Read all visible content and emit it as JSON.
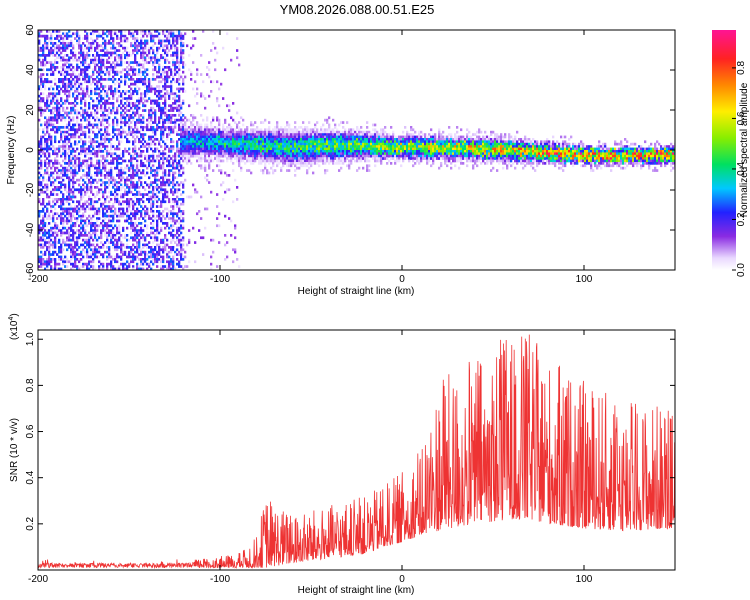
{
  "title": "YM08.2026.088.00.51.E25",
  "chart_data": [
    {
      "type": "heatmap",
      "xlabel": "Height of straight line (km)",
      "ylabel": "Frequency (Hz)",
      "xlim": [
        -200,
        150
      ],
      "ylim": [
        -60,
        60
      ],
      "xticks": [
        -200,
        -100,
        0,
        100
      ],
      "xtick_labels": [
        "-200",
        "-100",
        "0",
        "100"
      ],
      "yticks": [
        -60,
        -40,
        -20,
        0,
        20,
        40,
        60
      ],
      "ytick_labels": [
        "-60",
        "-40",
        "-20",
        "0",
        "20",
        "40",
        "60"
      ],
      "colorbar": {
        "label": "Normalized spectral amplitude",
        "range": [
          0,
          0.95
        ],
        "ticks": [
          0,
          0.2,
          0.4,
          0.6,
          0.8
        ],
        "tick_labels": [
          "0.0",
          "0.2",
          "0.4",
          "0.6",
          "0.8"
        ]
      },
      "band": {
        "description_points_x": [
          -120,
          -100,
          -60,
          -30,
          0,
          50,
          100,
          150
        ],
        "center_frequency": [
          5,
          4,
          2,
          3,
          2,
          1,
          -2,
          -2
        ],
        "half_width": [
          6,
          5,
          6,
          5,
          4,
          4,
          3,
          3
        ],
        "peak_amplitude": [
          0.35,
          0.45,
          0.5,
          0.55,
          0.65,
          0.75,
          0.9,
          0.85
        ]
      },
      "noise_region": {
        "x_range": [
          -200,
          -120
        ],
        "amplitude": [
          0.0,
          0.3
        ]
      }
    },
    {
      "type": "line",
      "xlabel": "Height of straight line (km)",
      "ylabel": "SNR (10 * v/v)",
      "y_multiplier": "(x10",
      "y_exponent": "4",
      "y_multiplier_close": ")",
      "xlim": [
        -200,
        150
      ],
      "ylim": [
        0,
        1.04
      ],
      "xticks": [
        -200,
        -100,
        0,
        100
      ],
      "xtick_labels": [
        "-200",
        "-100",
        "0",
        "100"
      ],
      "yticks": [
        0.2,
        0.4,
        0.6,
        0.8,
        1.0
      ],
      "ytick_labels": [
        "0.2",
        "0.4",
        "0.6",
        "0.8",
        "1.0"
      ],
      "color": "#ee3333",
      "envelope": {
        "x": [
          -200,
          -120,
          -110,
          -90,
          -80,
          -75,
          -60,
          -40,
          -20,
          -10,
          0,
          10,
          20,
          40,
          60,
          70,
          80,
          100,
          120,
          150
        ],
        "baseline": [
          0.01,
          0.01,
          0.01,
          0.01,
          0.01,
          0.01,
          0.03,
          0.05,
          0.07,
          0.1,
          0.12,
          0.15,
          0.17,
          0.2,
          0.22,
          0.22,
          0.2,
          0.18,
          0.17,
          0.18
        ],
        "max": [
          0.04,
          0.04,
          0.05,
          0.07,
          0.15,
          0.32,
          0.24,
          0.28,
          0.32,
          0.37,
          0.43,
          0.52,
          0.82,
          0.92,
          1.03,
          1.03,
          0.93,
          0.82,
          0.75,
          0.72
        ]
      }
    }
  ]
}
